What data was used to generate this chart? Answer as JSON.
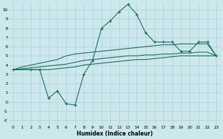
{
  "xlabel": "Humidex (Indice chaleur)",
  "bg_color": "#cce8ec",
  "grid_color": "#aacfd6",
  "line_color": "#1a6b5e",
  "xlim": [
    -0.5,
    23.5
  ],
  "ylim": [
    -2.5,
    10.8
  ],
  "xticks": [
    0,
    1,
    2,
    3,
    4,
    5,
    6,
    7,
    8,
    9,
    10,
    11,
    12,
    13,
    14,
    15,
    16,
    17,
    18,
    19,
    20,
    21,
    22,
    23
  ],
  "yticks": [
    -2,
    -1,
    0,
    1,
    2,
    3,
    4,
    5,
    6,
    7,
    8,
    9,
    10
  ],
  "line1_x": [
    0,
    1,
    2,
    3,
    4,
    5,
    6,
    7,
    8,
    9,
    10,
    11,
    12,
    13,
    14,
    15,
    16,
    17,
    18,
    19,
    20,
    21,
    22,
    23
  ],
  "line1_y": [
    3.5,
    3.8,
    4.0,
    4.2,
    4.4,
    4.6,
    5.0,
    5.2,
    5.3,
    5.4,
    5.5,
    5.6,
    5.7,
    5.8,
    5.9,
    6.0,
    6.1,
    6.2,
    6.2,
    6.3,
    6.3,
    6.3,
    6.3,
    5.0
  ],
  "line2_x": [
    0,
    1,
    2,
    3,
    4,
    5,
    6,
    7,
    8,
    9,
    10,
    11,
    12,
    13,
    14,
    15,
    16,
    17,
    18,
    19,
    20,
    21,
    22,
    23
  ],
  "line2_y": [
    3.5,
    3.6,
    3.7,
    3.8,
    3.9,
    4.0,
    4.1,
    4.3,
    4.5,
    4.6,
    4.7,
    4.8,
    4.9,
    5.0,
    5.0,
    5.1,
    5.1,
    5.2,
    5.2,
    5.3,
    5.3,
    5.4,
    5.4,
    5.0
  ],
  "line3_x": [
    0,
    1,
    2,
    3,
    4,
    5,
    6,
    7,
    8,
    9,
    10,
    11,
    12,
    13,
    14,
    15,
    16,
    17,
    18,
    19,
    20,
    21,
    22,
    23
  ],
  "line3_y": [
    3.5,
    3.5,
    3.5,
    3.5,
    3.5,
    3.6,
    3.7,
    3.8,
    4.0,
    4.1,
    4.2,
    4.3,
    4.4,
    4.5,
    4.6,
    4.6,
    4.7,
    4.8,
    4.9,
    5.0,
    5.0,
    5.0,
    5.0,
    5.0
  ],
  "line4_x": [
    0,
    2,
    3,
    4,
    5,
    6,
    7,
    8,
    9,
    10,
    11,
    12,
    13,
    14,
    15,
    16,
    17,
    18,
    19,
    20,
    21,
    22,
    23
  ],
  "line4_y": [
    3.5,
    3.5,
    3.5,
    0.4,
    1.2,
    -0.2,
    -0.35,
    3.0,
    4.5,
    8.0,
    8.8,
    9.8,
    10.6,
    9.5,
    7.5,
    6.5,
    6.5,
    6.5,
    5.5,
    5.5,
    6.5,
    6.5,
    5.0
  ]
}
